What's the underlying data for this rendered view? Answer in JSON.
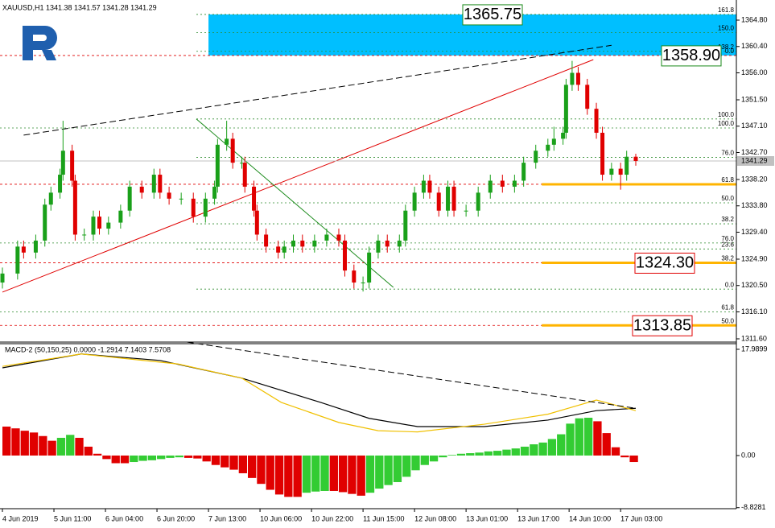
{
  "chart_data": [
    {
      "type": "candlestick",
      "title": "XAUUSD,H1  1341.38 1341.57 1341.28 1341.29",
      "up_color": "#1aa01a",
      "down_color": "#e00000",
      "last_color": "#c0c0c0",
      "x": [
        0,
        5,
        7,
        11,
        14,
        16,
        19,
        20,
        23,
        24,
        27,
        30,
        32,
        35,
        39,
        42,
        46,
        50,
        52,
        55,
        59,
        63,
        67,
        70,
        71,
        74,
        76,
        79,
        80,
        83,
        84,
        87,
        91,
        93,
        96,
        99,
        103,
        107,
        111,
        113,
        116,
        119,
        121,
        124,
        127,
        131,
        133,
        136,
        139,
        141,
        144,
        147,
        149,
        153,
        157,
        161,
        165,
        169,
        172,
        176,
        180,
        182,
        185,
        186,
        188,
        190,
        193,
        196,
        198,
        201,
        204,
        206,
        209
      ],
      "open": [
        1321,
        1322.5,
        1327,
        1326,
        1328,
        1334,
        1336,
        1339,
        1343,
        1338,
        1329,
        1329,
        1332,
        1330,
        1331,
        1333,
        1337,
        1336,
        1339,
        1336,
        1335,
        1335,
        1332,
        1335,
        1337,
        1344,
        1345,
        1341,
        1341,
        1337,
        1333,
        1329,
        1327,
        1326,
        1327,
        1328,
        1327,
        1328,
        1329,
        1328,
        1323,
        1321,
        1321,
        1326,
        1328,
        1327,
        1328,
        1333,
        1336,
        1338,
        1336,
        1333,
        1337,
        1333,
        1333,
        1336,
        1338,
        1337,
        1338,
        1341,
        1343,
        1344,
        1345,
        1346,
        1354,
        1356,
        1354,
        1350,
        1346,
        1339,
        1340,
        1339,
        1342
      ],
      "high": [
        1323.5,
        1328,
        1328,
        1329,
        1335,
        1337,
        1340,
        1348,
        1344,
        1339,
        1330,
        1333,
        1333,
        1332,
        1334,
        1338,
        1338,
        1340,
        1340,
        1337,
        1336,
        1336,
        1336,
        1338,
        1345,
        1348,
        1346,
        1342,
        1342,
        1338,
        1334,
        1330,
        1328,
        1328,
        1329,
        1329,
        1329,
        1330,
        1330,
        1329,
        1324,
        1322,
        1327,
        1329,
        1329,
        1329,
        1334,
        1337,
        1339,
        1339,
        1337,
        1338,
        1338,
        1334,
        1337,
        1339,
        1339,
        1339,
        1342,
        1344,
        1345,
        1347,
        1347,
        1355,
        1358,
        1357,
        1355,
        1351,
        1347,
        1341,
        1341,
        1343,
        1342.5
      ],
      "low": [
        1320,
        1321.5,
        1325,
        1325,
        1327,
        1333,
        1335,
        1338,
        1337,
        1328,
        1328,
        1328,
        1329,
        1329,
        1330,
        1332,
        1335,
        1335,
        1335,
        1334,
        1334,
        1331,
        1331,
        1334,
        1336,
        1343,
        1340,
        1340,
        1336,
        1332,
        1328,
        1326,
        1325,
        1325,
        1326,
        1326,
        1326,
        1327,
        1327,
        1322,
        1320,
        1319.5,
        1320,
        1325,
        1326,
        1326,
        1327,
        1332,
        1335,
        1335,
        1332,
        1332,
        1332,
        1332,
        1332,
        1335,
        1336,
        1336,
        1337,
        1340,
        1342,
        1343,
        1344,
        1345,
        1353,
        1353,
        1349,
        1345,
        1338,
        1338,
        1336.5,
        1338,
        1340.5
      ],
      "close": [
        1322.5,
        1327,
        1326,
        1328,
        1334,
        1336,
        1339,
        1343,
        1338,
        1329,
        1329,
        1332,
        1330,
        1331,
        1333,
        1337,
        1336,
        1339,
        1336,
        1335,
        1335,
        1332,
        1335,
        1337,
        1344,
        1345,
        1341,
        1341,
        1337,
        1333,
        1329,
        1327,
        1326,
        1327,
        1328,
        1327,
        1328,
        1329,
        1328,
        1323,
        1321,
        1321,
        1326,
        1328,
        1327,
        1328,
        1333,
        1336,
        1338,
        1336,
        1333,
        1337,
        1333,
        1333,
        1336,
        1338,
        1337,
        1338,
        1341,
        1343,
        1344,
        1345,
        1346,
        1354,
        1356,
        1354,
        1350,
        1346,
        1339,
        1340,
        1339,
        1342,
        1341.29
      ],
      "xlim": [
        -0.8,
        242.2
      ],
      "xticks": [
        {
          "value": 0,
          "label": "4 Jun 2019"
        },
        {
          "value": 17,
          "label": "5 Jun 11:00"
        },
        {
          "value": 34,
          "label": "6 Jun 04:00"
        },
        {
          "value": 51,
          "label": "6 Jun 20:00"
        },
        {
          "value": 68,
          "label": "7 Jun 13:00"
        },
        {
          "value": 85,
          "label": "10 Jun 06:00"
        },
        {
          "value": 102,
          "label": "10 Jun 22:00"
        },
        {
          "value": 119,
          "label": "11 Jun 15:00"
        },
        {
          "value": 136,
          "label": "12 Jun 08:00"
        },
        {
          "value": 153,
          "label": "13 Jun 01:00"
        },
        {
          "value": 170,
          "label": "13 Jun 17:00"
        },
        {
          "value": 187,
          "label": "14 Jun 10:00"
        },
        {
          "value": 204,
          "label": "17 Jun 03:00"
        }
      ],
      "ylim": [
        1311.06,
        1368.16
      ],
      "yticks": [
        {
          "value": 1364.8,
          "label": "1364.80"
        },
        {
          "value": 1360.4,
          "label": "1360.40"
        },
        {
          "value": 1356,
          "label": "1356.00"
        },
        {
          "value": 1351.5,
          "label": "1351.50"
        },
        {
          "value": 1347.1,
          "label": "1347.10"
        },
        {
          "value": 1342.7,
          "label": "1342.70"
        },
        {
          "value": 1338.2,
          "label": "1338.20"
        },
        {
          "value": 1333.8,
          "label": "1333.80"
        },
        {
          "value": 1329.4,
          "label": "1329.40"
        },
        {
          "value": 1324.9,
          "label": "1324.90"
        },
        {
          "value": 1320.5,
          "label": "1320.50"
        },
        {
          "value": 1316.1,
          "label": "1316.10"
        },
        {
          "value": 1311.6,
          "label": "1311.60"
        }
      ],
      "zone": {
        "from": 68,
        "top": 1365.75,
        "bottom": 1358.9,
        "color": "#00bfff"
      },
      "levels": [
        {
          "label": "161.8",
          "price": 1365.75,
          "color": "#2e8b2e",
          "from": 64
        },
        {
          "label": "150.0",
          "price": 1362.7,
          "color": "#c8b400",
          "from": 64
        },
        {
          "label": "138.2",
          "price": 1359.6,
          "color": "#c8b400",
          "from": 64
        },
        {
          "label": "0.0",
          "price": 1358.9,
          "color": "#e00000",
          "from": null
        },
        {
          "label": "100.0",
          "price": 1348.3,
          "color": "#2e8b2e",
          "from": 64
        },
        {
          "label": "100.0",
          "price": 1346.8,
          "color": "#2e8b2e",
          "from": null
        },
        {
          "label": "76.0",
          "price": 1341.9,
          "color": "#2e8b2e",
          "from": 64
        },
        {
          "label": "61.8",
          "price": 1337.4,
          "color": "#e00000",
          "from": null,
          "highlight": true
        },
        {
          "label": "50.0",
          "price": 1334.3,
          "color": "#2e8b2e",
          "from": 64
        },
        {
          "label": "38.2",
          "price": 1330.8,
          "color": "#2e8b2e",
          "from": 64
        },
        {
          "label": "76.0",
          "price": 1327.6,
          "color": "#2e8b2e",
          "from": null
        },
        {
          "label": "23.6",
          "price": 1326.6,
          "color": "#2e8b2e",
          "from": 64
        },
        {
          "label": "38.2",
          "price": 1324.3,
          "color": "#e00000",
          "from": null,
          "highlight": true
        },
        {
          "label": "0.0",
          "price": 1319.9,
          "color": "#2e8b2e",
          "from": 64
        },
        {
          "label": "61.8",
          "price": 1316.1,
          "color": "#2e8b2e",
          "from": null
        },
        {
          "label": "50.0",
          "price": 1313.85,
          "color": "#e00000",
          "from": null,
          "highlight": true
        }
      ],
      "highlight_from": 178,
      "highlight_color": "#ffb400",
      "trendlines": [
        {
          "color": "#000000",
          "dash": true,
          "x": [
            7,
            201
          ],
          "y": [
            1345.6,
            1360.6
          ]
        },
        {
          "color": "#e00000",
          "dash": false,
          "x": [
            0,
            195
          ],
          "y": [
            1319.4,
            1358.2
          ]
        },
        {
          "color": "#1a8a1a",
          "dash": false,
          "x": [
            64,
            129
          ],
          "y": [
            1348.3,
            1320.2
          ]
        }
      ],
      "price_labels": [
        {
          "value": 1365.75,
          "label": "1365.75",
          "color": "#1a8a1a"
        },
        {
          "value": 1358.9,
          "label": "1358.90",
          "color": "#1a8a1a"
        },
        {
          "value": 1324.3,
          "label": "1324.30",
          "color": "#e00000"
        },
        {
          "value": 1313.85,
          "label": "1313.85",
          "color": "#e00000"
        }
      ]
    },
    {
      "type": "macd",
      "title": "MACD-2 (50,150,25) 0.0000 -1.2914 7.1403 7.5708",
      "up_color": "#33cc33",
      "down_color": "#e00000",
      "x": [
        0,
        3,
        6,
        9,
        12,
        15,
        18,
        21,
        24,
        27,
        30,
        33,
        36,
        39,
        42,
        45,
        48,
        51,
        54,
        57,
        60,
        63,
        66,
        69,
        72,
        75,
        78,
        81,
        84,
        87,
        90,
        93,
        96,
        99,
        102,
        105,
        108,
        111,
        114,
        117,
        120,
        123,
        126,
        129,
        132,
        135,
        138,
        141,
        144,
        147,
        150,
        153,
        156,
        159,
        162,
        165,
        168,
        171,
        174,
        177,
        180,
        183,
        186,
        189,
        192,
        195,
        198,
        201,
        204,
        207
      ],
      "values": [
        4.9,
        4.6,
        4.2,
        3.9,
        3.3,
        2.5,
        3.0,
        3.5,
        3.0,
        1.5,
        0.3,
        -0.6,
        -1.3,
        -1.3,
        -1.1,
        -0.9,
        -0.8,
        -0.6,
        -0.4,
        -0.3,
        -0.4,
        -0.5,
        -1.0,
        -1.6,
        -2.0,
        -2.4,
        -3.0,
        -3.8,
        -4.8,
        -5.8,
        -6.6,
        -7.0,
        -7.0,
        -6.3,
        -6.1,
        -6.0,
        -6.0,
        -6.2,
        -6.5,
        -6.8,
        -6.3,
        -5.6,
        -5.0,
        -4.5,
        -3.6,
        -2.5,
        -1.6,
        -1.0,
        -0.3,
        0.1,
        0.3,
        0.4,
        0.5,
        0.7,
        0.8,
        1.0,
        1.2,
        1.5,
        1.9,
        2.2,
        2.8,
        3.6,
        5.4,
        6.3,
        6.4,
        5.8,
        3.8,
        1.4,
        -0.3,
        -1.1
      ],
      "series": [
        {
          "color": "#000000",
          "x": [
            0,
            26,
            52,
            79,
            105,
            121,
            137,
            159,
            180,
            196,
            209
          ],
          "values": [
            14.85,
            17.2,
            16.1,
            13.1,
            9.0,
            6.3,
            4.9,
            4.9,
            6.0,
            7.6,
            8.0
          ]
        },
        {
          "color": "#f0c000",
          "x": [
            0,
            26,
            39,
            58,
            79,
            92,
            111,
            124,
            137,
            159,
            180,
            196,
            209
          ],
          "values": [
            15.1,
            17.2,
            16.5,
            15.5,
            13.1,
            9.0,
            5.6,
            4.2,
            4.0,
            5.3,
            7.0,
            9.4,
            7.6
          ]
        }
      ],
      "trendline": {
        "color": "#000000",
        "x": [
          61,
          209
        ],
        "y": [
          19.2,
          8.0
        ]
      },
      "ylim": [
        -9.0,
        18.94
      ],
      "yticks": [
        17.9899,
        {
          "value": 0,
          "label": "0.00"
        },
        -8.8281
      ]
    }
  ]
}
